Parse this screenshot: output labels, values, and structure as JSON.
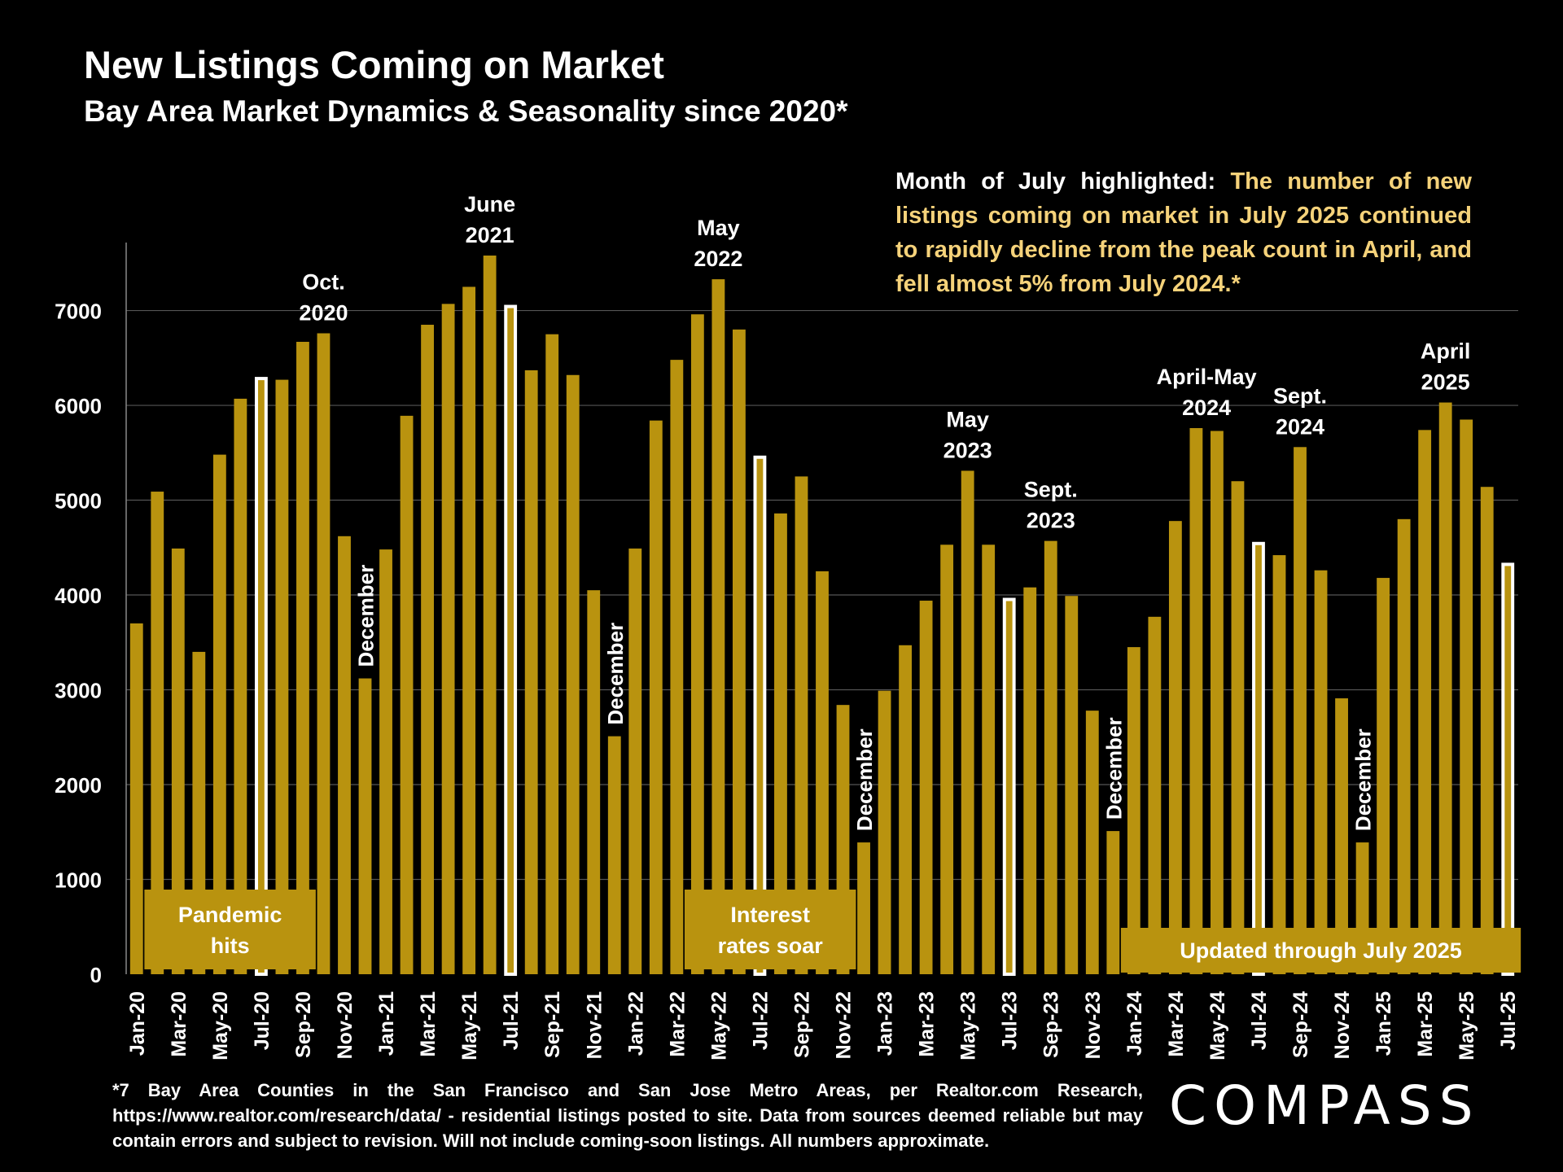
{
  "title": "New Listings Coming on Market",
  "subtitle": "Bay Area Market Dynamics & Seasonality since 2020*",
  "note": {
    "lead": "Month of July highlighted:",
    "body": "The number of new listings coming on market in July 2025 continued to rapidly decline from the peak count in April, and fell almost 5% from July 2024.*"
  },
  "footnote": "*7 Bay Area Counties in the San Francisco and San Jose Metro Areas, per Realtor.com Research, https://www.realtor.com/research/data/ - residential listings posted to site.  Data from sources deemed reliable but may contain errors and subject to revision. Will not include coming-soon listings. All numbers approximate.",
  "logo": "COMPASS",
  "colors": {
    "bar": "#b9930f",
    "highlight_fill": "#b9930f",
    "highlight_outline": "#ffffff",
    "background": "#000000",
    "grid": "#555555",
    "note_text": "#f5d27a"
  },
  "chart_data": {
    "type": "bar",
    "ylim": [
      0,
      7700
    ],
    "yticks": [
      0,
      1000,
      2000,
      3000,
      4000,
      5000,
      6000,
      7000
    ],
    "grid": true,
    "highlighted_month": "Jul",
    "categories": [
      "Jan-20",
      "Feb-20",
      "Mar-20",
      "Apr-20",
      "May-20",
      "Jun-20",
      "Jul-20",
      "Aug-20",
      "Sep-20",
      "Oct-20",
      "Nov-20",
      "Dec-20",
      "Jan-21",
      "Feb-21",
      "Mar-21",
      "Apr-21",
      "May-21",
      "Jun-21",
      "Jul-21",
      "Aug-21",
      "Sep-21",
      "Oct-21",
      "Nov-21",
      "Dec-21",
      "Jan-22",
      "Feb-22",
      "Mar-22",
      "Apr-22",
      "May-22",
      "Jun-22",
      "Jul-22",
      "Aug-22",
      "Sep-22",
      "Oct-22",
      "Nov-22",
      "Dec-22",
      "Jan-23",
      "Feb-23",
      "Mar-23",
      "Apr-23",
      "May-23",
      "Jun-23",
      "Jul-23",
      "Aug-23",
      "Sep-23",
      "Oct-23",
      "Nov-23",
      "Dec-23",
      "Jan-24",
      "Feb-24",
      "Mar-24",
      "Apr-24",
      "May-24",
      "Jun-24",
      "Jul-24",
      "Aug-24",
      "Sep-24",
      "Oct-24",
      "Nov-24",
      "Dec-24",
      "Jan-25",
      "Feb-25",
      "Mar-25",
      "Apr-25",
      "May-25",
      "Jun-25",
      "Jul-25"
    ],
    "values": [
      3700,
      5090,
      4490,
      3400,
      5480,
      6070,
      6300,
      6270,
      6670,
      6760,
      4620,
      3120,
      4480,
      5890,
      6850,
      7070,
      7250,
      7580,
      7060,
      6370,
      6750,
      6320,
      4050,
      2510,
      4490,
      5840,
      6480,
      6960,
      7330,
      6800,
      5470,
      4860,
      5250,
      4250,
      2840,
      1390,
      2990,
      3470,
      3940,
      4530,
      5310,
      4530,
      3970,
      4080,
      4570,
      3990,
      2780,
      1510,
      3450,
      3770,
      4780,
      5760,
      5730,
      5200,
      4560,
      4420,
      5560,
      4260,
      2910,
      1390,
      4180,
      4800,
      5740,
      6030,
      5850,
      5140,
      4340
    ],
    "tick_labels": [
      "Jan-20",
      "Mar-20",
      "May-20",
      "Jul-20",
      "Sep-20",
      "Nov-20",
      "Jan-21",
      "Mar-21",
      "May-21",
      "Jul-21",
      "Sep-21",
      "Nov-21",
      "Jan-22",
      "Mar-22",
      "May-22",
      "Jul-22",
      "Sep-22",
      "Nov-22",
      "Jan-23",
      "Mar-23",
      "May-23",
      "Jul-23",
      "Sep-23",
      "Nov-23",
      "Jan-24",
      "Mar-24",
      "May-24",
      "Jul-24",
      "Sep-24",
      "Nov-24",
      "Jan-25",
      "Mar-25",
      "May-25",
      "Jul-25"
    ],
    "annotations": [
      {
        "at": 9,
        "lines": [
          "Oct.",
          "2020"
        ]
      },
      {
        "at": 17,
        "lines": [
          "June",
          "2021"
        ]
      },
      {
        "at": 28,
        "lines": [
          "May",
          "2022"
        ]
      },
      {
        "at": 40,
        "lines": [
          "May",
          "2023"
        ]
      },
      {
        "at": 44,
        "lines": [
          "Sept.",
          "2023"
        ]
      },
      {
        "at": 51.5,
        "lines": [
          "April-May",
          "2024"
        ]
      },
      {
        "at": 56,
        "lines": [
          "Sept.",
          "2024"
        ]
      },
      {
        "at": 63,
        "lines": [
          "April",
          "2025"
        ]
      }
    ],
    "december_labels": [
      {
        "at": 11,
        "text": "December"
      },
      {
        "at": 23,
        "text": "December"
      },
      {
        "at": 35,
        "text": "December"
      },
      {
        "at": 47,
        "text": "December"
      },
      {
        "at": 59,
        "text": "December"
      }
    ],
    "event_boxes": [
      {
        "from": 1,
        "to": 8,
        "lines": [
          "Pandemic",
          "hits"
        ]
      },
      {
        "from": 27,
        "to": 34,
        "lines": [
          "Interest",
          "rates soar"
        ]
      },
      {
        "from": 48,
        "to": 66,
        "lines": [
          "Updated through July 2025"
        ]
      }
    ]
  }
}
